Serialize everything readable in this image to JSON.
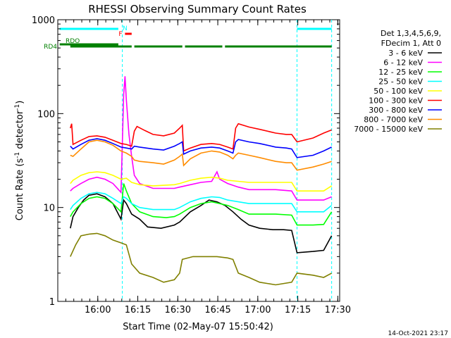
{
  "chart_data": {
    "type": "line",
    "title": "RHESSI Observing Summary Count Rates",
    "xlabel": "Start Time (02-May-07 15:50:42)",
    "ylabel_text": "Count Rate (s",
    "ylabel_sup": "-1",
    "ylabel_tail": " detector",
    "ylabel_sup2": "-1",
    "ylabel_close": ")",
    "y_scale": "log",
    "ylim": [
      1,
      1000
    ],
    "xlim_minutes": [
      -5.7,
      100
    ],
    "x_ticks": [
      {
        "minute": 9.3,
        "label": "16:00"
      },
      {
        "minute": 24.3,
        "label": "16:15"
      },
      {
        "minute": 39.3,
        "label": "16:30"
      },
      {
        "minute": 54.3,
        "label": "16:45"
      },
      {
        "minute": 69.3,
        "label": "17:00"
      },
      {
        "minute": 84.3,
        "label": "17:15"
      },
      {
        "minute": 99.3,
        "label": "17:30"
      }
    ],
    "y_ticks": [
      {
        "value": 1,
        "label": "1"
      },
      {
        "value": 10,
        "label": "10"
      },
      {
        "value": 100,
        "label": "100"
      },
      {
        "value": 1000,
        "label": "1000"
      }
    ],
    "legend_header": [
      "Det 1,3,4,5,6,9,",
      "FDecim 1, Att 0"
    ],
    "legend_position": "right",
    "footer_timestamp": "14-Oct-2021 23:17",
    "series": [
      {
        "name": "3 - 6 keV",
        "color": "#000000",
        "points": [
          [
            -1,
            6
          ],
          [
            0,
            8
          ],
          [
            2,
            10
          ],
          [
            4,
            12
          ],
          [
            6,
            13.5
          ],
          [
            9,
            14
          ],
          [
            12,
            13
          ],
          [
            15,
            11
          ],
          [
            18,
            7.5
          ],
          [
            19,
            12
          ],
          [
            20,
            11
          ],
          [
            22,
            8.5
          ],
          [
            25,
            7.5
          ],
          [
            28,
            6.2
          ],
          [
            33,
            6
          ],
          [
            38,
            6.5
          ],
          [
            40,
            7
          ],
          [
            44,
            9
          ],
          [
            48,
            10.5
          ],
          [
            51,
            12
          ],
          [
            54,
            11.5
          ],
          [
            57,
            10.5
          ],
          [
            60,
            9
          ],
          [
            63,
            7.5
          ],
          [
            66,
            6.5
          ],
          [
            70,
            6
          ],
          [
            75,
            5.8
          ],
          [
            79,
            5.8
          ],
          [
            82,
            5.7
          ],
          [
            84,
            3.3
          ],
          [
            90,
            3.4
          ],
          [
            94,
            3.5
          ],
          [
            97,
            5
          ]
        ]
      },
      {
        "name": "6 - 12 keV",
        "color": "#ff00ff",
        "points": [
          [
            -1,
            15
          ],
          [
            0,
            16
          ],
          [
            3,
            18
          ],
          [
            6,
            20
          ],
          [
            9,
            21
          ],
          [
            12,
            20
          ],
          [
            15,
            18
          ],
          [
            18,
            14.5
          ],
          [
            19,
            160
          ],
          [
            19.5,
            250
          ],
          [
            20,
            140
          ],
          [
            21,
            60
          ],
          [
            22,
            35
          ],
          [
            23,
            22
          ],
          [
            25,
            18
          ],
          [
            30,
            16
          ],
          [
            38,
            16
          ],
          [
            40,
            16.5
          ],
          [
            44,
            17.5
          ],
          [
            48,
            18.5
          ],
          [
            52,
            19
          ],
          [
            54,
            24
          ],
          [
            55,
            20
          ],
          [
            58,
            18
          ],
          [
            62,
            16.5
          ],
          [
            66,
            15.5
          ],
          [
            70,
            15.5
          ],
          [
            76,
            15.5
          ],
          [
            82,
            15
          ],
          [
            84,
            12
          ],
          [
            90,
            12
          ],
          [
            94,
            12
          ],
          [
            97,
            13
          ]
        ]
      },
      {
        "name": "12 - 25 keV",
        "color": "#00ff00",
        "points": [
          [
            -1,
            8
          ],
          [
            0,
            9
          ],
          [
            3,
            11
          ],
          [
            6,
            12.5
          ],
          [
            9,
            13
          ],
          [
            12,
            12.5
          ],
          [
            15,
            11
          ],
          [
            18,
            9
          ],
          [
            19,
            18
          ],
          [
            20,
            15
          ],
          [
            22,
            11
          ],
          [
            25,
            9
          ],
          [
            30,
            8
          ],
          [
            35,
            7.8
          ],
          [
            38,
            8
          ],
          [
            40,
            8.5
          ],
          [
            44,
            10
          ],
          [
            48,
            11
          ],
          [
            52,
            11.5
          ],
          [
            55,
            11
          ],
          [
            58,
            10.5
          ],
          [
            62,
            9.5
          ],
          [
            66,
            8.5
          ],
          [
            70,
            8.5
          ],
          [
            76,
            8.5
          ],
          [
            82,
            8.3
          ],
          [
            84,
            6.5
          ],
          [
            90,
            6.5
          ],
          [
            94,
            6.6
          ],
          [
            97,
            9
          ]
        ]
      },
      {
        "name": "25 - 50 keV",
        "color": "#00ffff",
        "points": [
          [
            -1,
            9.5
          ],
          [
            0,
            10.5
          ],
          [
            3,
            12.5
          ],
          [
            6,
            14
          ],
          [
            9,
            14.5
          ],
          [
            12,
            14
          ],
          [
            15,
            12.5
          ],
          [
            18,
            11
          ],
          [
            19,
            13
          ],
          [
            20,
            12.5
          ],
          [
            22,
            11
          ],
          [
            25,
            10
          ],
          [
            30,
            9.5
          ],
          [
            38,
            9.5
          ],
          [
            40,
            10
          ],
          [
            44,
            11.5
          ],
          [
            48,
            12.5
          ],
          [
            52,
            13
          ],
          [
            55,
            12.8
          ],
          [
            58,
            12
          ],
          [
            62,
            11.5
          ],
          [
            66,
            11
          ],
          [
            70,
            11
          ],
          [
            76,
            11
          ],
          [
            82,
            11
          ],
          [
            84,
            9
          ],
          [
            90,
            9
          ],
          [
            94,
            9
          ],
          [
            97,
            10.5
          ]
        ]
      },
      {
        "name": "50 - 100 keV",
        "color": "#ffff00",
        "points": [
          [
            -1,
            18
          ],
          [
            0,
            19.5
          ],
          [
            3,
            22
          ],
          [
            6,
            23.5
          ],
          [
            9,
            24
          ],
          [
            12,
            23.5
          ],
          [
            15,
            22
          ],
          [
            18,
            20
          ],
          [
            20,
            20.5
          ],
          [
            22,
            18.5
          ],
          [
            25,
            17.5
          ],
          [
            30,
            17
          ],
          [
            38,
            17.5
          ],
          [
            40,
            18
          ],
          [
            44,
            19.5
          ],
          [
            48,
            20.5
          ],
          [
            52,
            21
          ],
          [
            55,
            20.5
          ],
          [
            58,
            19.5
          ],
          [
            62,
            19
          ],
          [
            66,
            18.5
          ],
          [
            70,
            18.5
          ],
          [
            76,
            18.5
          ],
          [
            82,
            18.5
          ],
          [
            84,
            15
          ],
          [
            90,
            15
          ],
          [
            94,
            15
          ],
          [
            97,
            17
          ]
        ]
      },
      {
        "name": "100 - 300 keV",
        "color": "#ff0000",
        "points": [
          [
            -1,
            70
          ],
          [
            -0.5,
            78
          ],
          [
            0,
            47
          ],
          [
            3,
            52
          ],
          [
            6,
            57
          ],
          [
            9,
            58
          ],
          [
            12,
            56
          ],
          [
            15,
            52
          ],
          [
            18,
            48
          ],
          [
            20,
            47
          ],
          [
            22,
            45
          ],
          [
            23,
            65
          ],
          [
            24,
            73
          ],
          [
            27,
            66
          ],
          [
            30,
            60
          ],
          [
            34,
            58
          ],
          [
            38,
            62
          ],
          [
            40,
            70
          ],
          [
            41,
            75
          ],
          [
            41.5,
            40
          ],
          [
            44,
            43
          ],
          [
            48,
            47
          ],
          [
            52,
            48
          ],
          [
            55,
            47
          ],
          [
            58,
            44
          ],
          [
            60,
            42
          ],
          [
            61,
            70
          ],
          [
            62,
            78
          ],
          [
            66,
            72
          ],
          [
            70,
            68
          ],
          [
            76,
            62
          ],
          [
            80,
            60
          ],
          [
            82,
            60
          ],
          [
            84,
            50
          ],
          [
            90,
            55
          ],
          [
            94,
            62
          ],
          [
            97,
            67
          ]
        ]
      },
      {
        "name": "300 - 800 keV",
        "color": "#0000ff",
        "points": [
          [
            -1,
            45
          ],
          [
            0,
            42
          ],
          [
            3,
            47
          ],
          [
            6,
            52
          ],
          [
            9,
            54
          ],
          [
            12,
            52
          ],
          [
            15,
            48
          ],
          [
            18,
            44
          ],
          [
            20,
            43
          ],
          [
            22,
            42
          ],
          [
            23,
            45
          ],
          [
            25,
            44
          ],
          [
            30,
            42
          ],
          [
            34,
            41
          ],
          [
            38,
            45
          ],
          [
            40,
            48
          ],
          [
            41,
            50
          ],
          [
            41.5,
            37
          ],
          [
            44,
            40
          ],
          [
            48,
            43
          ],
          [
            52,
            44
          ],
          [
            55,
            43
          ],
          [
            58,
            40
          ],
          [
            60,
            38
          ],
          [
            61,
            50
          ],
          [
            62,
            53
          ],
          [
            66,
            50
          ],
          [
            70,
            48
          ],
          [
            76,
            44
          ],
          [
            80,
            43
          ],
          [
            82,
            42
          ],
          [
            84,
            34
          ],
          [
            90,
            36
          ],
          [
            94,
            40
          ],
          [
            97,
            44
          ]
        ]
      },
      {
        "name": "800 - 7000 keV",
        "color": "#ff8c00",
        "points": [
          [
            -1,
            36
          ],
          [
            0,
            35
          ],
          [
            3,
            42
          ],
          [
            6,
            50
          ],
          [
            9,
            52
          ],
          [
            12,
            50
          ],
          [
            15,
            46
          ],
          [
            18,
            40
          ],
          [
            20,
            38
          ],
          [
            22,
            35
          ],
          [
            23,
            32
          ],
          [
            25,
            31
          ],
          [
            30,
            30
          ],
          [
            34,
            29
          ],
          [
            38,
            32
          ],
          [
            40,
            35
          ],
          [
            41,
            37
          ],
          [
            41.5,
            28
          ],
          [
            44,
            33
          ],
          [
            48,
            38
          ],
          [
            52,
            40
          ],
          [
            55,
            39
          ],
          [
            58,
            36
          ],
          [
            60,
            33
          ],
          [
            61,
            36
          ],
          [
            62,
            38
          ],
          [
            66,
            36
          ],
          [
            70,
            34
          ],
          [
            76,
            31
          ],
          [
            80,
            30
          ],
          [
            82,
            30
          ],
          [
            84,
            25
          ],
          [
            90,
            27
          ],
          [
            94,
            29
          ],
          [
            97,
            31
          ]
        ]
      },
      {
        "name": "7000 - 15000 keV",
        "color": "#808000",
        "points": [
          [
            -1,
            3
          ],
          [
            1,
            4
          ],
          [
            3,
            5
          ],
          [
            6,
            5.2
          ],
          [
            9,
            5.3
          ],
          [
            12,
            5
          ],
          [
            15,
            4.5
          ],
          [
            18,
            4.2
          ],
          [
            20,
            4
          ],
          [
            22,
            2.5
          ],
          [
            25,
            2
          ],
          [
            30,
            1.8
          ],
          [
            34,
            1.6
          ],
          [
            38,
            1.7
          ],
          [
            40,
            2
          ],
          [
            41,
            2.8
          ],
          [
            45,
            3
          ],
          [
            50,
            3
          ],
          [
            54,
            3
          ],
          [
            58,
            2.9
          ],
          [
            60,
            2.8
          ],
          [
            62,
            2
          ],
          [
            66,
            1.8
          ],
          [
            70,
            1.6
          ],
          [
            76,
            1.5
          ],
          [
            82,
            1.6
          ],
          [
            84,
            2
          ],
          [
            90,
            1.9
          ],
          [
            94,
            1.8
          ],
          [
            97,
            2
          ]
        ]
      }
    ],
    "flag_bars": [
      {
        "label": "N",
        "color": "#00ffff",
        "label_color": "#00ffff",
        "segments": [
          [
            -5,
            17
          ],
          [
            84,
            97
          ]
        ]
      },
      {
        "label": "F",
        "color": "#ff0000",
        "label_color": "#ff0000",
        "segments": [
          [
            19.5,
            22
          ]
        ]
      },
      {
        "label": "RDO",
        "color": "#008000",
        "label_color": "#008000",
        "segments": [
          [
            -5,
            17
          ]
        ]
      },
      {
        "label": "RD4",
        "color": "#008000",
        "label_color": "#008000",
        "segments": [
          [
            -1,
            22
          ],
          [
            23,
            41
          ],
          [
            42,
            56
          ],
          [
            57,
            97
          ]
        ]
      }
    ],
    "vertical_markers_minutes": [
      18.5,
      84,
      97
    ]
  }
}
